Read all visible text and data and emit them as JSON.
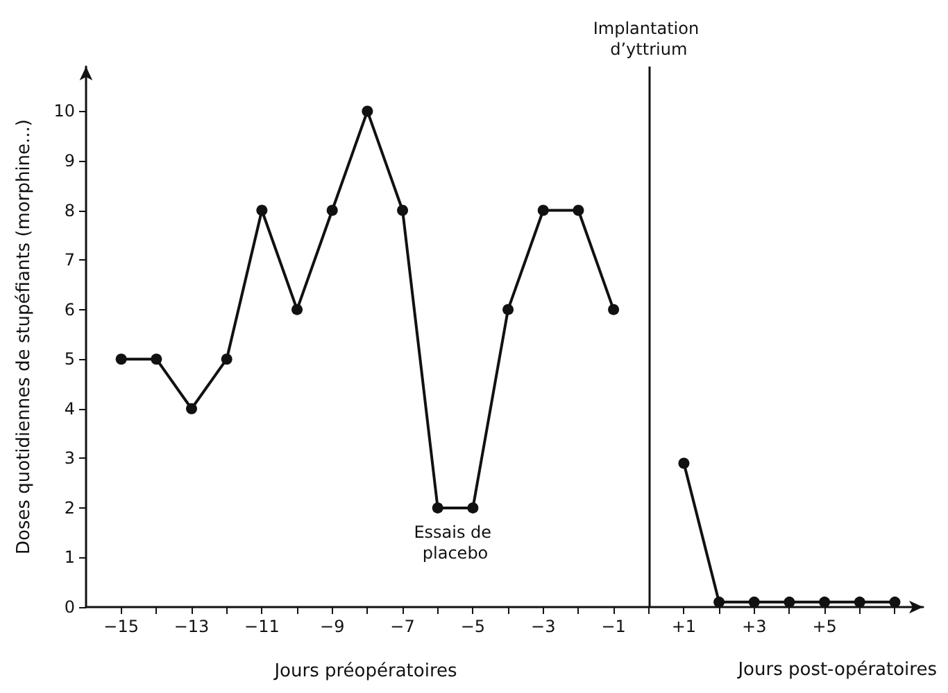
{
  "chart_data": {
    "type": "line",
    "ylabel": "Doses quotidiennes de stupéfiants (morphine...)",
    "xlabel": "Jours préopératoires",
    "x": [
      -15,
      -14,
      -13,
      -12,
      -11,
      -10,
      -9,
      -8,
      -7,
      -6,
      -5,
      -4,
      -3,
      -2,
      -1,
      0,
      1,
      2,
      3,
      4,
      5,
      6,
      7
    ],
    "series": [
      {
        "color": "#111111",
        "values": [
          5,
          5,
          4,
          5,
          8,
          6,
          8,
          10,
          8,
          2,
          2,
          6,
          8,
          8,
          6,
          null,
          2.9,
          0.1,
          0.1,
          0.1,
          0.1,
          0.1,
          0.1
        ]
      }
    ],
    "xlim": [
      -16,
      7.8
    ],
    "xticks": [
      {
        "value": -15,
        "label": "−15"
      },
      {
        "value": -14,
        "label": null
      },
      {
        "value": -13,
        "label": "−13"
      },
      {
        "value": -12,
        "label": null
      },
      {
        "value": -11,
        "label": "−11"
      },
      {
        "value": -10,
        "label": null
      },
      {
        "value": -9,
        "label": "−9"
      },
      {
        "value": -8,
        "label": null
      },
      {
        "value": -7,
        "label": "−7"
      },
      {
        "value": -6,
        "label": null
      },
      {
        "value": -5,
        "label": "−5"
      },
      {
        "value": -4,
        "label": null
      },
      {
        "value": -3,
        "label": "−3"
      },
      {
        "value": -2,
        "label": null
      },
      {
        "value": -1,
        "label": "−1"
      },
      {
        "value": 0,
        "label": null
      },
      {
        "value": 1,
        "label": "+1"
      },
      {
        "value": 2,
        "label": null
      },
      {
        "value": 3,
        "label": "+3"
      },
      {
        "value": 4,
        "label": null
      },
      {
        "value": 5,
        "label": "+5"
      },
      {
        "value": 6,
        "label": null
      },
      {
        "value": 7,
        "label": null
      }
    ],
    "ylim": [
      0,
      10.9
    ],
    "yticks": [
      0,
      1,
      2,
      3,
      4,
      5,
      6,
      7,
      8,
      9,
      10
    ],
    "ref_lines": [
      {
        "axis": "x",
        "value": 0,
        "label": "Implantation d’yttrium"
      }
    ],
    "annotations": [
      {
        "text": "Essais de placebo",
        "x": -5.5,
        "y": 2
      },
      "Jours post-opératoires"
    ],
    "grid": false,
    "marker": "circle",
    "line_style": "solid"
  }
}
